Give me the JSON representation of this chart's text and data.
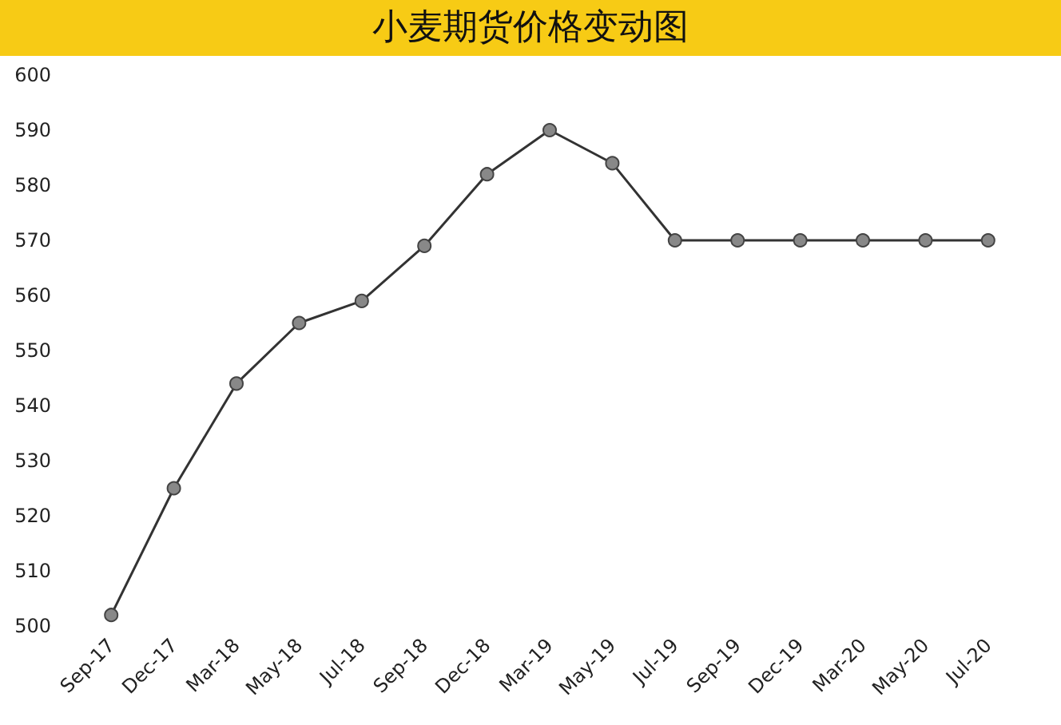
{
  "chart_data": {
    "type": "line",
    "title": "小麦期货价格变动图",
    "categories": [
      "Sep-17",
      "Dec-17",
      "Mar-18",
      "May-18",
      "Jul-18",
      "Sep-18",
      "Dec-18",
      "Mar-19",
      "May-19",
      "Jul-19",
      "Sep-19",
      "Dec-19",
      "Mar-20",
      "May-20",
      "Jul-20"
    ],
    "series": [
      {
        "color": "#333333",
        "values": [
          502,
          525,
          544,
          555,
          559,
          569,
          582,
          590,
          584,
          570,
          570,
          570,
          570,
          570,
          570
        ]
      }
    ],
    "ylim": [
      500,
      600
    ],
    "yticks": [
      500,
      510,
      520,
      530,
      540,
      550,
      560,
      570,
      580,
      590,
      600
    ],
    "grid": false,
    "marker": "circle",
    "line_style": "solid"
  }
}
